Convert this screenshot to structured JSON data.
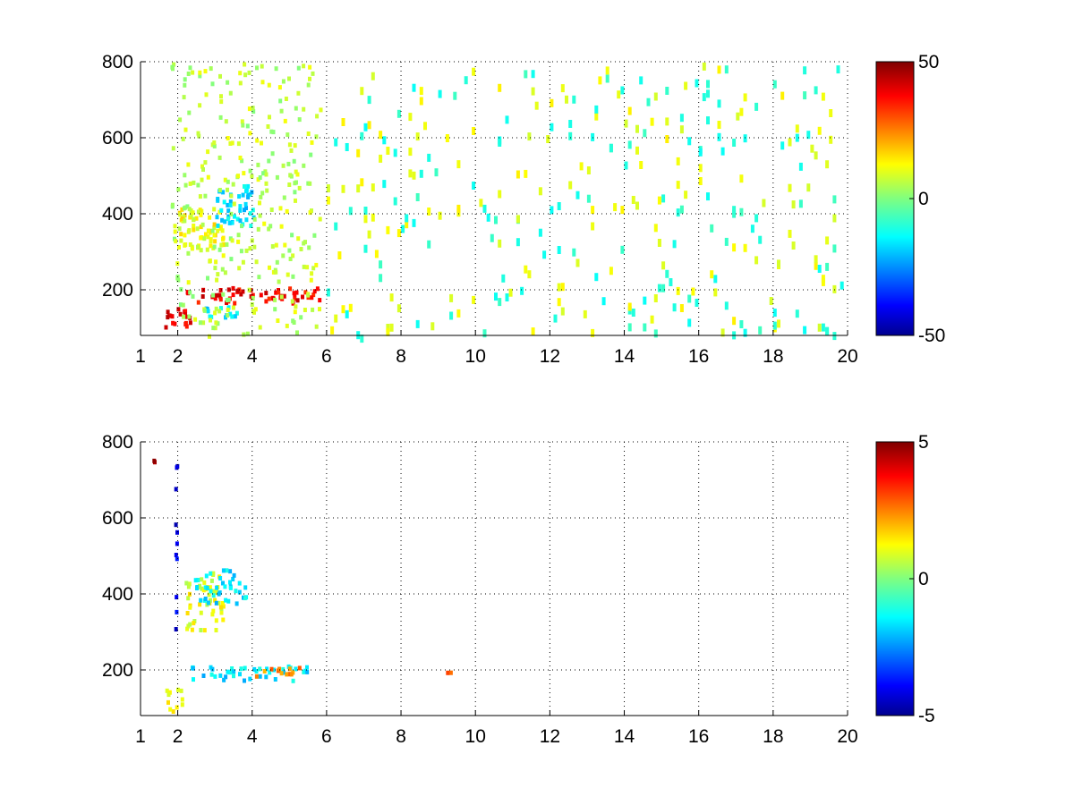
{
  "chart_data": [
    {
      "type": "heatmap",
      "title": "",
      "xlabel": "",
      "ylabel": "",
      "xlim": [
        1,
        20
      ],
      "ylim": [
        80,
        800
      ],
      "x_ticks": [
        {
          "value": 1,
          "label": "1"
        },
        {
          "value": 2,
          "label": "2"
        },
        {
          "value": 4,
          "label": "4"
        },
        {
          "value": 6,
          "label": "6"
        },
        {
          "value": 8,
          "label": "8"
        },
        {
          "value": 10,
          "label": "10"
        },
        {
          "value": 12,
          "label": "12"
        },
        {
          "value": 14,
          "label": "14"
        },
        {
          "value": 16,
          "label": "16"
        },
        {
          "value": 18,
          "label": "18"
        },
        {
          "value": 20,
          "label": "20"
        }
      ],
      "y_ticks": [
        {
          "value": 200,
          "label": "200"
        },
        {
          "value": 400,
          "label": "400"
        },
        {
          "value": 600,
          "label": "600"
        },
        {
          "value": 800,
          "label": "800"
        }
      ],
      "grid": true,
      "colormap": "jet",
      "colorbar": {
        "range": [
          -50,
          50
        ],
        "ticks": [
          {
            "value": 50,
            "label": "50"
          },
          {
            "value": 0,
            "label": "0"
          },
          {
            "value": -50,
            "label": "-50"
          }
        ]
      },
      "features": [
        {
          "x_range": [
            1.5,
            2.3
          ],
          "y_range": [
            100,
            160
          ],
          "value": 40
        },
        {
          "x_range": [
            2.2,
            5.8
          ],
          "y_range": [
            170,
            210
          ],
          "value": 38
        },
        {
          "x_range": [
            2.5,
            3.6
          ],
          "y_range": [
            130,
            160
          ],
          "value": -15
        },
        {
          "x_range": [
            2.0,
            3.2
          ],
          "y_range": [
            300,
            420
          ],
          "value": 12
        },
        {
          "x_range": [
            3.0,
            4.0
          ],
          "y_range": [
            370,
            480
          ],
          "value": -15
        },
        {
          "x_range": [
            1.8,
            5.8
          ],
          "y_range": [
            80,
            800
          ],
          "value": 6
        },
        {
          "x_range": [
            6.0,
            20.0
          ],
          "y_range": [
            80,
            800
          ],
          "value": 0
        }
      ]
    },
    {
      "type": "heatmap",
      "title": "",
      "xlabel": "",
      "ylabel": "",
      "xlim": [
        1,
        20
      ],
      "ylim": [
        80,
        800
      ],
      "x_ticks": [
        {
          "value": 1,
          "label": "1"
        },
        {
          "value": 2,
          "label": "2"
        },
        {
          "value": 4,
          "label": "4"
        },
        {
          "value": 6,
          "label": "6"
        },
        {
          "value": 8,
          "label": "8"
        },
        {
          "value": 10,
          "label": "10"
        },
        {
          "value": 12,
          "label": "12"
        },
        {
          "value": 14,
          "label": "14"
        },
        {
          "value": 16,
          "label": "16"
        },
        {
          "value": 18,
          "label": "18"
        },
        {
          "value": 20,
          "label": "20"
        }
      ],
      "y_ticks": [
        {
          "value": 200,
          "label": "200"
        },
        {
          "value": 400,
          "label": "400"
        },
        {
          "value": 600,
          "label": "600"
        },
        {
          "value": 800,
          "label": "800"
        }
      ],
      "grid": true,
      "colormap": "jet",
      "colorbar": {
        "range": [
          -5,
          5
        ],
        "ticks": [
          {
            "value": 5,
            "label": "5"
          },
          {
            "value": 0,
            "label": "0"
          },
          {
            "value": -5,
            "label": "-5"
          }
        ]
      },
      "features": [
        {
          "x_range": [
            1.6,
            2.1
          ],
          "y_range": [
            90,
            160
          ],
          "value": 1
        },
        {
          "x_range": [
            2.1,
            3.2
          ],
          "y_range": [
            310,
            460
          ],
          "value": 1
        },
        {
          "x_range": [
            2.4,
            3.8
          ],
          "y_range": [
            380,
            470
          ],
          "value": -1.5
        },
        {
          "x_range": [
            2.2,
            5.6
          ],
          "y_range": [
            175,
            215
          ],
          "value": -1.5
        },
        {
          "x_range": [
            4.0,
            5.3
          ],
          "y_range": [
            185,
            215
          ],
          "value": 2.5
        },
        {
          "x_range": [
            1.3,
            1.4
          ],
          "y_range": [
            730,
            760
          ],
          "value": 5
        },
        {
          "x_range": [
            1.9,
            1.95
          ],
          "y_range": [
            300,
            790
          ],
          "value": -4
        },
        {
          "x_range": [
            9.2,
            9.35
          ],
          "y_range": [
            185,
            200
          ],
          "value": 3
        }
      ]
    }
  ]
}
